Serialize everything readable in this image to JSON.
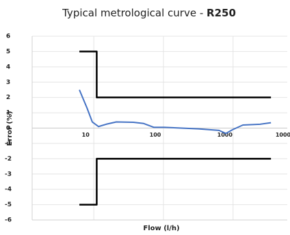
{
  "chart_data": {
    "type": "line",
    "title": "Typical metrological curve -",
    "title_bold": "R250",
    "x_label": "Flow (l/h)",
    "y_label": "Error (%)",
    "xscale": "log",
    "xlim": [
      1.3,
      6000
    ],
    "xticks": [
      10,
      100,
      1000
    ],
    "ylim": [
      -6,
      6
    ],
    "yticks": [
      -6,
      -5,
      -4,
      -3,
      -2,
      -1,
      0,
      1,
      2,
      3,
      4,
      5,
      6
    ],
    "grid": true,
    "annotations": [
      "1000"
    ],
    "series": [
      {
        "color": "#000000",
        "x": [
          6.2,
          11,
          11,
          3500
        ],
        "values": [
          5,
          5,
          2,
          2
        ]
      },
      {
        "color": "#000000",
        "x": [
          6.2,
          11,
          11,
          3500
        ],
        "values": [
          -5,
          -5,
          -2,
          -2
        ]
      },
      {
        "color": "#4472c4",
        "x": [
          6.2,
          8,
          9.5,
          11.7,
          15,
          21,
          37,
          52,
          73,
          103,
          318,
          628,
          787,
          986,
          1384,
          2438,
          3500
        ],
        "values": [
          2.5,
          1.3,
          0.4,
          0.1,
          0.25,
          0.4,
          0.38,
          0.3,
          0.05,
          0.05,
          -0.05,
          -0.15,
          -0.35,
          -0.1,
          0.2,
          0.25,
          0.35
        ]
      }
    ]
  }
}
